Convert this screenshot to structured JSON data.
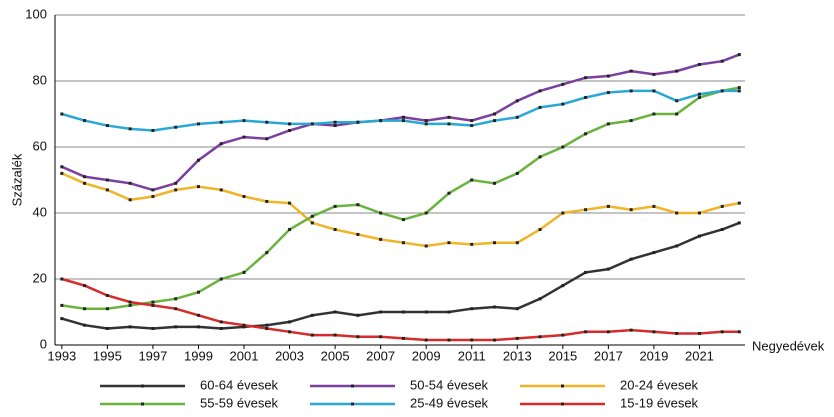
{
  "chart_data": {
    "type": "line",
    "y_label": "Százalék",
    "x_label": "Negyedévek",
    "x": [
      1993,
      1994,
      1995,
      1996,
      1997,
      1998,
      1999,
      2000,
      2001,
      2002,
      2003,
      2004,
      2005,
      2006,
      2007,
      2008,
      2009,
      2010,
      2011,
      2012,
      2013,
      2014,
      2015,
      2016,
      2017,
      2018,
      2019,
      2020,
      2021,
      2022,
      2022.75
    ],
    "series": [
      {
        "name": "60-64 évesek",
        "color": "#333333",
        "values": [
          8,
          6,
          5,
          5.5,
          5,
          5.5,
          5.5,
          5,
          5.5,
          6,
          7,
          9,
          10,
          9,
          10,
          10,
          10,
          10,
          11,
          11.5,
          11,
          14,
          18,
          22,
          23,
          26,
          28,
          30,
          33,
          35,
          37
        ]
      },
      {
        "name": "50-54 évesek",
        "color": "#7b3f9e",
        "values": [
          54,
          51,
          50,
          49,
          47,
          49,
          56,
          61,
          63,
          62.5,
          65,
          67,
          66.5,
          67.5,
          68,
          69,
          68,
          69,
          68,
          70,
          74,
          77,
          79,
          81,
          81.5,
          83,
          82,
          83,
          85,
          86,
          88
        ]
      },
      {
        "name": "20-24 évesek",
        "color": "#f0b429",
        "values": [
          52,
          49,
          47,
          44,
          45,
          47,
          48,
          47,
          45,
          43.5,
          43,
          37,
          35,
          33.5,
          32,
          31,
          30,
          31,
          30.5,
          31,
          31,
          35,
          40,
          41,
          42,
          41,
          42,
          40,
          40,
          42,
          43
        ]
      },
      {
        "name": "55-59 évesek",
        "color": "#6ab33e",
        "values": [
          12,
          11,
          11,
          12,
          13,
          14,
          16,
          20,
          22,
          28,
          35,
          39,
          42,
          42.5,
          40,
          38,
          40,
          46,
          50,
          49,
          52,
          57,
          60,
          64,
          67,
          68,
          70,
          70,
          75,
          77,
          78
        ]
      },
      {
        "name": "25-49 évesek",
        "color": "#29a8d6",
        "values": [
          70,
          68,
          66.5,
          65.5,
          65,
          66,
          67,
          67.5,
          68,
          67.5,
          67,
          67,
          67.5,
          67.5,
          68,
          68,
          67,
          67,
          66.5,
          68,
          69,
          72,
          73,
          75,
          76.5,
          77,
          77,
          74,
          76,
          77,
          77
        ]
      },
      {
        "name": "15-19 évesek",
        "color": "#d62b2b",
        "values": [
          20,
          18,
          15,
          13,
          12,
          11,
          9,
          7,
          6,
          5,
          4,
          3,
          3,
          2.5,
          2.5,
          2,
          1.5,
          1.5,
          1.5,
          1.5,
          2,
          2.5,
          3,
          4,
          4,
          4.5,
          4,
          3.5,
          3.5,
          4,
          4
        ]
      }
    ],
    "xlim": [
      1992.7,
      2023.0
    ],
    "xticks": [
      1993,
      1995,
      1997,
      1999,
      2001,
      2003,
      2005,
      2007,
      2009,
      2011,
      2013,
      2015,
      2017,
      2019,
      2021
    ],
    "ylim": [
      0,
      100
    ],
    "yticks": [
      0,
      20,
      40,
      60,
      80,
      100
    ],
    "grid": true,
    "legend": "bottom"
  }
}
